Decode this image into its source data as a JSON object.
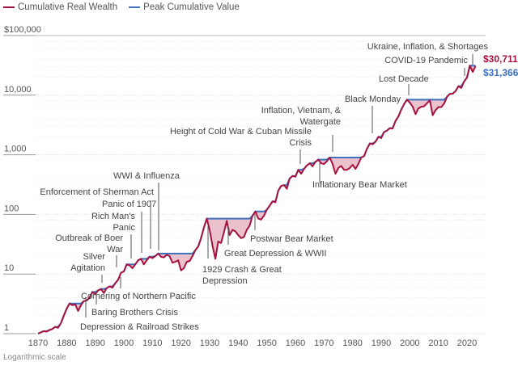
{
  "chart_data": {
    "type": "line",
    "y_scale": "log",
    "ylim": [
      1,
      100000
    ],
    "xlim": [
      1870,
      2026
    ],
    "y_ticks": [
      {
        "value": 1,
        "label": "1"
      },
      {
        "value": 10,
        "label": "10"
      },
      {
        "value": 100,
        "label": "100"
      },
      {
        "value": 1000,
        "label": "1,000"
      },
      {
        "value": 10000,
        "label": "10,000"
      },
      {
        "value": 100000,
        "label": "$100,000"
      }
    ],
    "x_ticks": [
      "1870",
      "1880",
      "1890",
      "1900",
      "1910",
      "1920",
      "1930",
      "1940",
      "1950",
      "1960",
      "1970",
      "1980",
      "1990",
      "2000",
      "2010",
      "2020"
    ],
    "grid": "horizontal dotted",
    "legend_placement": "top-left",
    "axis_note": "Logarithmic scale",
    "colors": {
      "wealth": "#a5123f",
      "peak": "#3f6fbf",
      "drawdown_fill": "#e7b6c2"
    },
    "series": [
      {
        "name": "Cumulative Real Wealth",
        "values": [
          [
            1870,
            1.0
          ],
          [
            1871,
            1.05
          ],
          [
            1872,
            1.1
          ],
          [
            1873,
            1.08
          ],
          [
            1874,
            1.15
          ],
          [
            1875,
            1.2
          ],
          [
            1876,
            1.3
          ],
          [
            1877,
            1.25
          ],
          [
            1878,
            1.5
          ],
          [
            1879,
            2.0
          ],
          [
            1880,
            2.6
          ],
          [
            1881,
            3.2
          ],
          [
            1882,
            3.0
          ],
          [
            1883,
            3.1
          ],
          [
            1884,
            2.4
          ],
          [
            1885,
            3.0
          ],
          [
            1886,
            3.5
          ],
          [
            1887,
            3.6
          ],
          [
            1888,
            4.0
          ],
          [
            1889,
            5.0
          ],
          [
            1890,
            4.6
          ],
          [
            1891,
            5.3
          ],
          [
            1892,
            5.6
          ],
          [
            1893,
            4.8
          ],
          [
            1894,
            5.8
          ],
          [
            1895,
            6.2
          ],
          [
            1896,
            5.9
          ],
          [
            1897,
            7.0
          ],
          [
            1898,
            8.0
          ],
          [
            1899,
            10.5
          ],
          [
            1900,
            11
          ],
          [
            1901,
            14.5
          ],
          [
            1902,
            14
          ],
          [
            1903,
            12.5
          ],
          [
            1904,
            14.5
          ],
          [
            1905,
            17
          ],
          [
            1906,
            18
          ],
          [
            1907,
            14.5
          ],
          [
            1908,
            17
          ],
          [
            1909,
            19.5
          ],
          [
            1910,
            18.5
          ],
          [
            1911,
            20
          ],
          [
            1912,
            22
          ],
          [
            1913,
            19.5
          ],
          [
            1914,
            19
          ],
          [
            1915,
            21
          ],
          [
            1916,
            20
          ],
          [
            1917,
            15.5
          ],
          [
            1918,
            16
          ],
          [
            1919,
            17
          ],
          [
            1920,
            11.5
          ],
          [
            1921,
            12.5
          ],
          [
            1922,
            16
          ],
          [
            1923,
            16.5
          ],
          [
            1924,
            20
          ],
          [
            1925,
            25
          ],
          [
            1926,
            29
          ],
          [
            1927,
            40
          ],
          [
            1928,
            60
          ],
          [
            1929,
            85
          ],
          [
            1930,
            55
          ],
          [
            1931,
            30
          ],
          [
            1932,
            18
          ],
          [
            1933,
            35
          ],
          [
            1934,
            33
          ],
          [
            1935,
            50
          ],
          [
            1936,
            78
          ],
          [
            1937,
            45
          ],
          [
            1938,
            55
          ],
          [
            1939,
            52
          ],
          [
            1940,
            45
          ],
          [
            1941,
            40
          ],
          [
            1942,
            42
          ],
          [
            1943,
            55
          ],
          [
            1944,
            65
          ],
          [
            1945,
            95
          ],
          [
            1946,
            112
          ],
          [
            1947,
            85
          ],
          [
            1948,
            82
          ],
          [
            1949,
            95
          ],
          [
            1950,
            120
          ],
          [
            1951,
            140
          ],
          [
            1952,
            165
          ],
          [
            1953,
            160
          ],
          [
            1954,
            250
          ],
          [
            1955,
            300
          ],
          [
            1956,
            310
          ],
          [
            1957,
            270
          ],
          [
            1958,
            400
          ],
          [
            1959,
            440
          ],
          [
            1960,
            430
          ],
          [
            1961,
            560
          ],
          [
            1962,
            480
          ],
          [
            1963,
            580
          ],
          [
            1964,
            660
          ],
          [
            1965,
            720
          ],
          [
            1966,
            640
          ],
          [
            1967,
            760
          ],
          [
            1968,
            830
          ],
          [
            1969,
            720
          ],
          [
            1970,
            700
          ],
          [
            1971,
            780
          ],
          [
            1972,
            900
          ],
          [
            1973,
            700
          ],
          [
            1974,
            480
          ],
          [
            1975,
            600
          ],
          [
            1976,
            650
          ],
          [
            1977,
            560
          ],
          [
            1978,
            560
          ],
          [
            1979,
            600
          ],
          [
            1980,
            680
          ],
          [
            1981,
            580
          ],
          [
            1982,
            700
          ],
          [
            1983,
            900
          ],
          [
            1984,
            950
          ],
          [
            1985,
            1250
          ],
          [
            1986,
            1550
          ],
          [
            1987,
            1500
          ],
          [
            1988,
            1650
          ],
          [
            1989,
            2000
          ],
          [
            1990,
            1900
          ],
          [
            1991,
            2400
          ],
          [
            1992,
            2550
          ],
          [
            1993,
            2800
          ],
          [
            1994,
            2750
          ],
          [
            1995,
            3700
          ],
          [
            1996,
            4400
          ],
          [
            1997,
            5700
          ],
          [
            1998,
            7100
          ],
          [
            1999,
            8400
          ],
          [
            2000,
            7500
          ],
          [
            2001,
            6400
          ],
          [
            2002,
            4800
          ],
          [
            2003,
            6000
          ],
          [
            2004,
            6400
          ],
          [
            2005,
            6500
          ],
          [
            2006,
            7300
          ],
          [
            2007,
            8200
          ],
          [
            2008,
            4600
          ],
          [
            2009,
            5600
          ],
          [
            2010,
            6300
          ],
          [
            2011,
            6300
          ],
          [
            2012,
            7200
          ],
          [
            2013,
            9400
          ],
          [
            2014,
            10500
          ],
          [
            2015,
            10600
          ],
          [
            2016,
            11700
          ],
          [
            2017,
            14100
          ],
          [
            2018,
            13200
          ],
          [
            2019,
            17000
          ],
          [
            2020,
            19800
          ],
          [
            2021,
            31366
          ],
          [
            2022,
            24500
          ],
          [
            2023,
            30711
          ]
        ]
      },
      {
        "name": "Peak Cumulative Value",
        "derived": "running maximum of Cumulative Real Wealth"
      }
    ],
    "end_labels": {
      "current": "$30,711",
      "peak": "$31,366"
    },
    "annotations": [
      {
        "year": 1880,
        "lines": [
          "Depression & Railroad Strikes"
        ]
      },
      {
        "year": 1884,
        "lines": [
          "Baring Brothers Crisis"
        ]
      },
      {
        "year": 1893,
        "lines": [
          "Silver",
          "Agitation"
        ]
      },
      {
        "year": 1897,
        "lines": [
          "Outbreak of Boer",
          "War"
        ]
      },
      {
        "year": 1901,
        "lines": [
          "Cornering of Northern Pacific"
        ]
      },
      {
        "year": 1903,
        "lines": [
          "Rich Man's",
          "Panic"
        ]
      },
      {
        "year": 1907,
        "lines": [
          "Panic of 1907"
        ]
      },
      {
        "year": 1911,
        "lines": [
          "Enforcement of Sherman Act"
        ]
      },
      {
        "year": 1916,
        "lines": [
          "WWI & Influenza"
        ]
      },
      {
        "year": 1929,
        "lines": [
          "1929 Crash & Great",
          "Depression"
        ]
      },
      {
        "year": 1937,
        "lines": [
          "Great Depression & WWII"
        ]
      },
      {
        "year": 1946,
        "lines": [
          "Postwar Bear Market"
        ]
      },
      {
        "year": 1962,
        "lines": [
          "Height of Cold War & Cuban Missile",
          "Crisis"
        ]
      },
      {
        "year": 1968,
        "lines": [
          "Inflationary Bear Market"
        ]
      },
      {
        "year": 1973,
        "lines": [
          "Inflation, Vietnam, &",
          "Watergate"
        ]
      },
      {
        "year": 1987,
        "lines": [
          "Black Monday"
        ]
      },
      {
        "year": 2000,
        "lines": [
          "Lost Decade"
        ]
      },
      {
        "year": 2020,
        "lines": [
          "COVID-19 Pandemic"
        ]
      },
      {
        "year": 2022,
        "lines": [
          "Ukraine, Inflation, & Shortages"
        ]
      }
    ]
  }
}
